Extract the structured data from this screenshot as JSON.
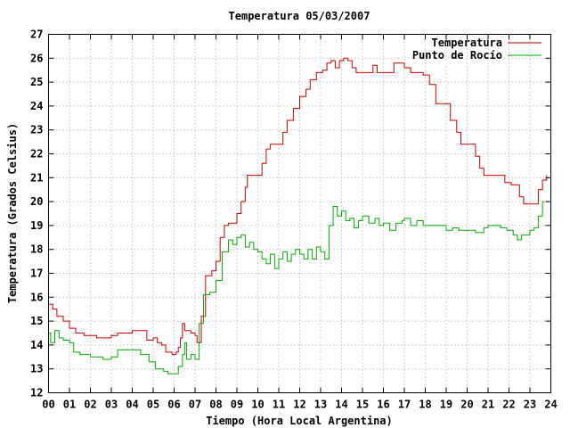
{
  "chart_data": {
    "type": "line",
    "title": "Temperatura 05/03/2007",
    "xlabel": "Tiempo (Hora Local Argentina)",
    "ylabel": "Temperatura (Grados Celsius)",
    "xlim": [
      0,
      24
    ],
    "ylim": [
      12,
      27
    ],
    "x_ticks": [
      "00",
      "01",
      "02",
      "03",
      "04",
      "05",
      "06",
      "07",
      "08",
      "09",
      "10",
      "11",
      "12",
      "13",
      "14",
      "15",
      "16",
      "17",
      "18",
      "19",
      "20",
      "21",
      "22",
      "23",
      "24"
    ],
    "y_ticks": [
      "12",
      "13",
      "14",
      "15",
      "16",
      "17",
      "18",
      "19",
      "20",
      "21",
      "22",
      "23",
      "24",
      "25",
      "26",
      "27"
    ],
    "grid": true,
    "legend_position": "top-right",
    "series": [
      {
        "name": "Temperatura",
        "color": "#cc0000",
        "points": [
          [
            0.0,
            15.7
          ],
          [
            0.2,
            15.5
          ],
          [
            0.4,
            15.2
          ],
          [
            0.7,
            15.0
          ],
          [
            1.0,
            14.7
          ],
          [
            1.3,
            14.5
          ],
          [
            1.7,
            14.4
          ],
          [
            2.0,
            14.4
          ],
          [
            2.3,
            14.3
          ],
          [
            2.6,
            14.3
          ],
          [
            3.0,
            14.4
          ],
          [
            3.3,
            14.5
          ],
          [
            3.6,
            14.5
          ],
          [
            4.0,
            14.6
          ],
          [
            4.3,
            14.6
          ],
          [
            4.6,
            14.6
          ],
          [
            4.7,
            14.2
          ],
          [
            5.0,
            14.3
          ],
          [
            5.2,
            14.1
          ],
          [
            5.4,
            14.0
          ],
          [
            5.6,
            13.7
          ],
          [
            5.9,
            13.6
          ],
          [
            6.1,
            13.7
          ],
          [
            6.2,
            13.9
          ],
          [
            6.3,
            14.3
          ],
          [
            6.4,
            14.9
          ],
          [
            6.5,
            14.6
          ],
          [
            6.8,
            14.5
          ],
          [
            7.0,
            14.4
          ],
          [
            7.1,
            14.1
          ],
          [
            7.3,
            15.2
          ],
          [
            7.5,
            16.9
          ],
          [
            7.8,
            17.1
          ],
          [
            8.0,
            17.5
          ],
          [
            8.2,
            18.5
          ],
          [
            8.4,
            19.0
          ],
          [
            8.6,
            19.1
          ],
          [
            8.9,
            19.1
          ],
          [
            9.0,
            19.5
          ],
          [
            9.2,
            20.0
          ],
          [
            9.4,
            20.6
          ],
          [
            9.5,
            21.1
          ],
          [
            10.0,
            21.1
          ],
          [
            10.2,
            21.6
          ],
          [
            10.4,
            22.2
          ],
          [
            10.6,
            22.4
          ],
          [
            11.0,
            22.4
          ],
          [
            11.2,
            22.9
          ],
          [
            11.4,
            23.4
          ],
          [
            11.7,
            23.9
          ],
          [
            12.0,
            24.4
          ],
          [
            12.3,
            24.7
          ],
          [
            12.5,
            25.1
          ],
          [
            12.8,
            25.4
          ],
          [
            13.1,
            25.5
          ],
          [
            13.3,
            25.8
          ],
          [
            13.5,
            25.9
          ],
          [
            13.7,
            25.6
          ],
          [
            13.9,
            25.9
          ],
          [
            14.1,
            26.0
          ],
          [
            14.3,
            25.9
          ],
          [
            14.5,
            25.6
          ],
          [
            14.7,
            25.4
          ],
          [
            15.2,
            25.4
          ],
          [
            15.5,
            25.7
          ],
          [
            15.7,
            25.4
          ],
          [
            16.3,
            25.4
          ],
          [
            16.5,
            25.8
          ],
          [
            16.8,
            25.8
          ],
          [
            17.0,
            25.6
          ],
          [
            17.3,
            25.4
          ],
          [
            17.6,
            25.4
          ],
          [
            17.9,
            25.3
          ],
          [
            18.2,
            24.9
          ],
          [
            18.5,
            24.1
          ],
          [
            19.0,
            24.1
          ],
          [
            19.2,
            23.4
          ],
          [
            19.5,
            22.9
          ],
          [
            19.7,
            22.4
          ],
          [
            20.2,
            22.4
          ],
          [
            20.4,
            21.9
          ],
          [
            20.6,
            21.4
          ],
          [
            20.8,
            21.1
          ],
          [
            21.6,
            21.1
          ],
          [
            21.8,
            20.8
          ],
          [
            22.1,
            20.7
          ],
          [
            22.3,
            20.7
          ],
          [
            22.5,
            20.2
          ],
          [
            22.7,
            19.9
          ],
          [
            23.2,
            19.9
          ],
          [
            23.4,
            20.5
          ],
          [
            23.6,
            20.9
          ],
          [
            23.8,
            21.1
          ]
        ]
      },
      {
        "name": "Punto de Rocío",
        "color": "#00aa00",
        "points": [
          [
            0.0,
            14.5
          ],
          [
            0.1,
            14.1
          ],
          [
            0.3,
            14.6
          ],
          [
            0.5,
            14.3
          ],
          [
            0.7,
            14.2
          ],
          [
            1.0,
            14.1
          ],
          [
            1.2,
            13.7
          ],
          [
            1.5,
            13.6
          ],
          [
            1.8,
            13.6
          ],
          [
            2.0,
            13.5
          ],
          [
            2.3,
            13.5
          ],
          [
            2.6,
            13.4
          ],
          [
            3.0,
            13.5
          ],
          [
            3.3,
            13.8
          ],
          [
            3.7,
            13.8
          ],
          [
            4.0,
            13.8
          ],
          [
            4.4,
            13.6
          ],
          [
            4.6,
            13.6
          ],
          [
            4.8,
            13.3
          ],
          [
            5.1,
            13.0
          ],
          [
            5.5,
            12.9
          ],
          [
            5.7,
            12.8
          ],
          [
            6.0,
            12.8
          ],
          [
            6.2,
            13.1
          ],
          [
            6.4,
            13.6
          ],
          [
            6.5,
            14.1
          ],
          [
            6.6,
            13.4
          ],
          [
            6.8,
            13.6
          ],
          [
            7.0,
            13.4
          ],
          [
            7.2,
            14.9
          ],
          [
            7.4,
            16.1
          ],
          [
            7.7,
            16.2
          ],
          [
            8.0,
            16.7
          ],
          [
            8.3,
            17.9
          ],
          [
            8.6,
            18.4
          ],
          [
            8.8,
            18.2
          ],
          [
            9.0,
            18.5
          ],
          [
            9.2,
            18.6
          ],
          [
            9.4,
            18.1
          ],
          [
            9.6,
            18.3
          ],
          [
            9.8,
            18.0
          ],
          [
            10.0,
            17.9
          ],
          [
            10.2,
            17.6
          ],
          [
            10.4,
            17.4
          ],
          [
            10.6,
            17.8
          ],
          [
            10.8,
            17.2
          ],
          [
            11.0,
            17.6
          ],
          [
            11.2,
            17.9
          ],
          [
            11.4,
            17.5
          ],
          [
            11.6,
            17.8
          ],
          [
            11.8,
            18.0
          ],
          [
            12.0,
            17.8
          ],
          [
            12.2,
            17.6
          ],
          [
            12.4,
            18.0
          ],
          [
            12.6,
            17.6
          ],
          [
            12.8,
            18.1
          ],
          [
            13.0,
            17.9
          ],
          [
            13.2,
            17.6
          ],
          [
            13.4,
            19.0
          ],
          [
            13.6,
            19.8
          ],
          [
            13.8,
            19.4
          ],
          [
            14.0,
            19.6
          ],
          [
            14.2,
            19.2
          ],
          [
            14.4,
            19.3
          ],
          [
            14.6,
            18.9
          ],
          [
            14.8,
            19.2
          ],
          [
            15.0,
            19.4
          ],
          [
            15.3,
            19.1
          ],
          [
            15.6,
            19.3
          ],
          [
            15.8,
            19.0
          ],
          [
            16.0,
            19.1
          ],
          [
            16.3,
            18.8
          ],
          [
            16.6,
            19.1
          ],
          [
            16.9,
            19.2
          ],
          [
            17.0,
            19.3
          ],
          [
            17.3,
            19.0
          ],
          [
            17.6,
            19.2
          ],
          [
            17.9,
            19.0
          ],
          [
            18.2,
            19.0
          ],
          [
            18.6,
            19.0
          ],
          [
            19.0,
            18.8
          ],
          [
            19.3,
            18.9
          ],
          [
            19.6,
            18.8
          ],
          [
            20.0,
            18.8
          ],
          [
            20.4,
            18.7
          ],
          [
            20.8,
            18.9
          ],
          [
            21.0,
            19.0
          ],
          [
            21.3,
            19.0
          ],
          [
            21.6,
            18.9
          ],
          [
            21.9,
            18.8
          ],
          [
            22.2,
            18.6
          ],
          [
            22.4,
            18.4
          ],
          [
            22.6,
            18.6
          ],
          [
            23.0,
            18.8
          ],
          [
            23.2,
            18.9
          ],
          [
            23.4,
            19.4
          ],
          [
            23.6,
            20.0
          ],
          [
            23.7,
            20.0
          ]
        ]
      }
    ]
  }
}
